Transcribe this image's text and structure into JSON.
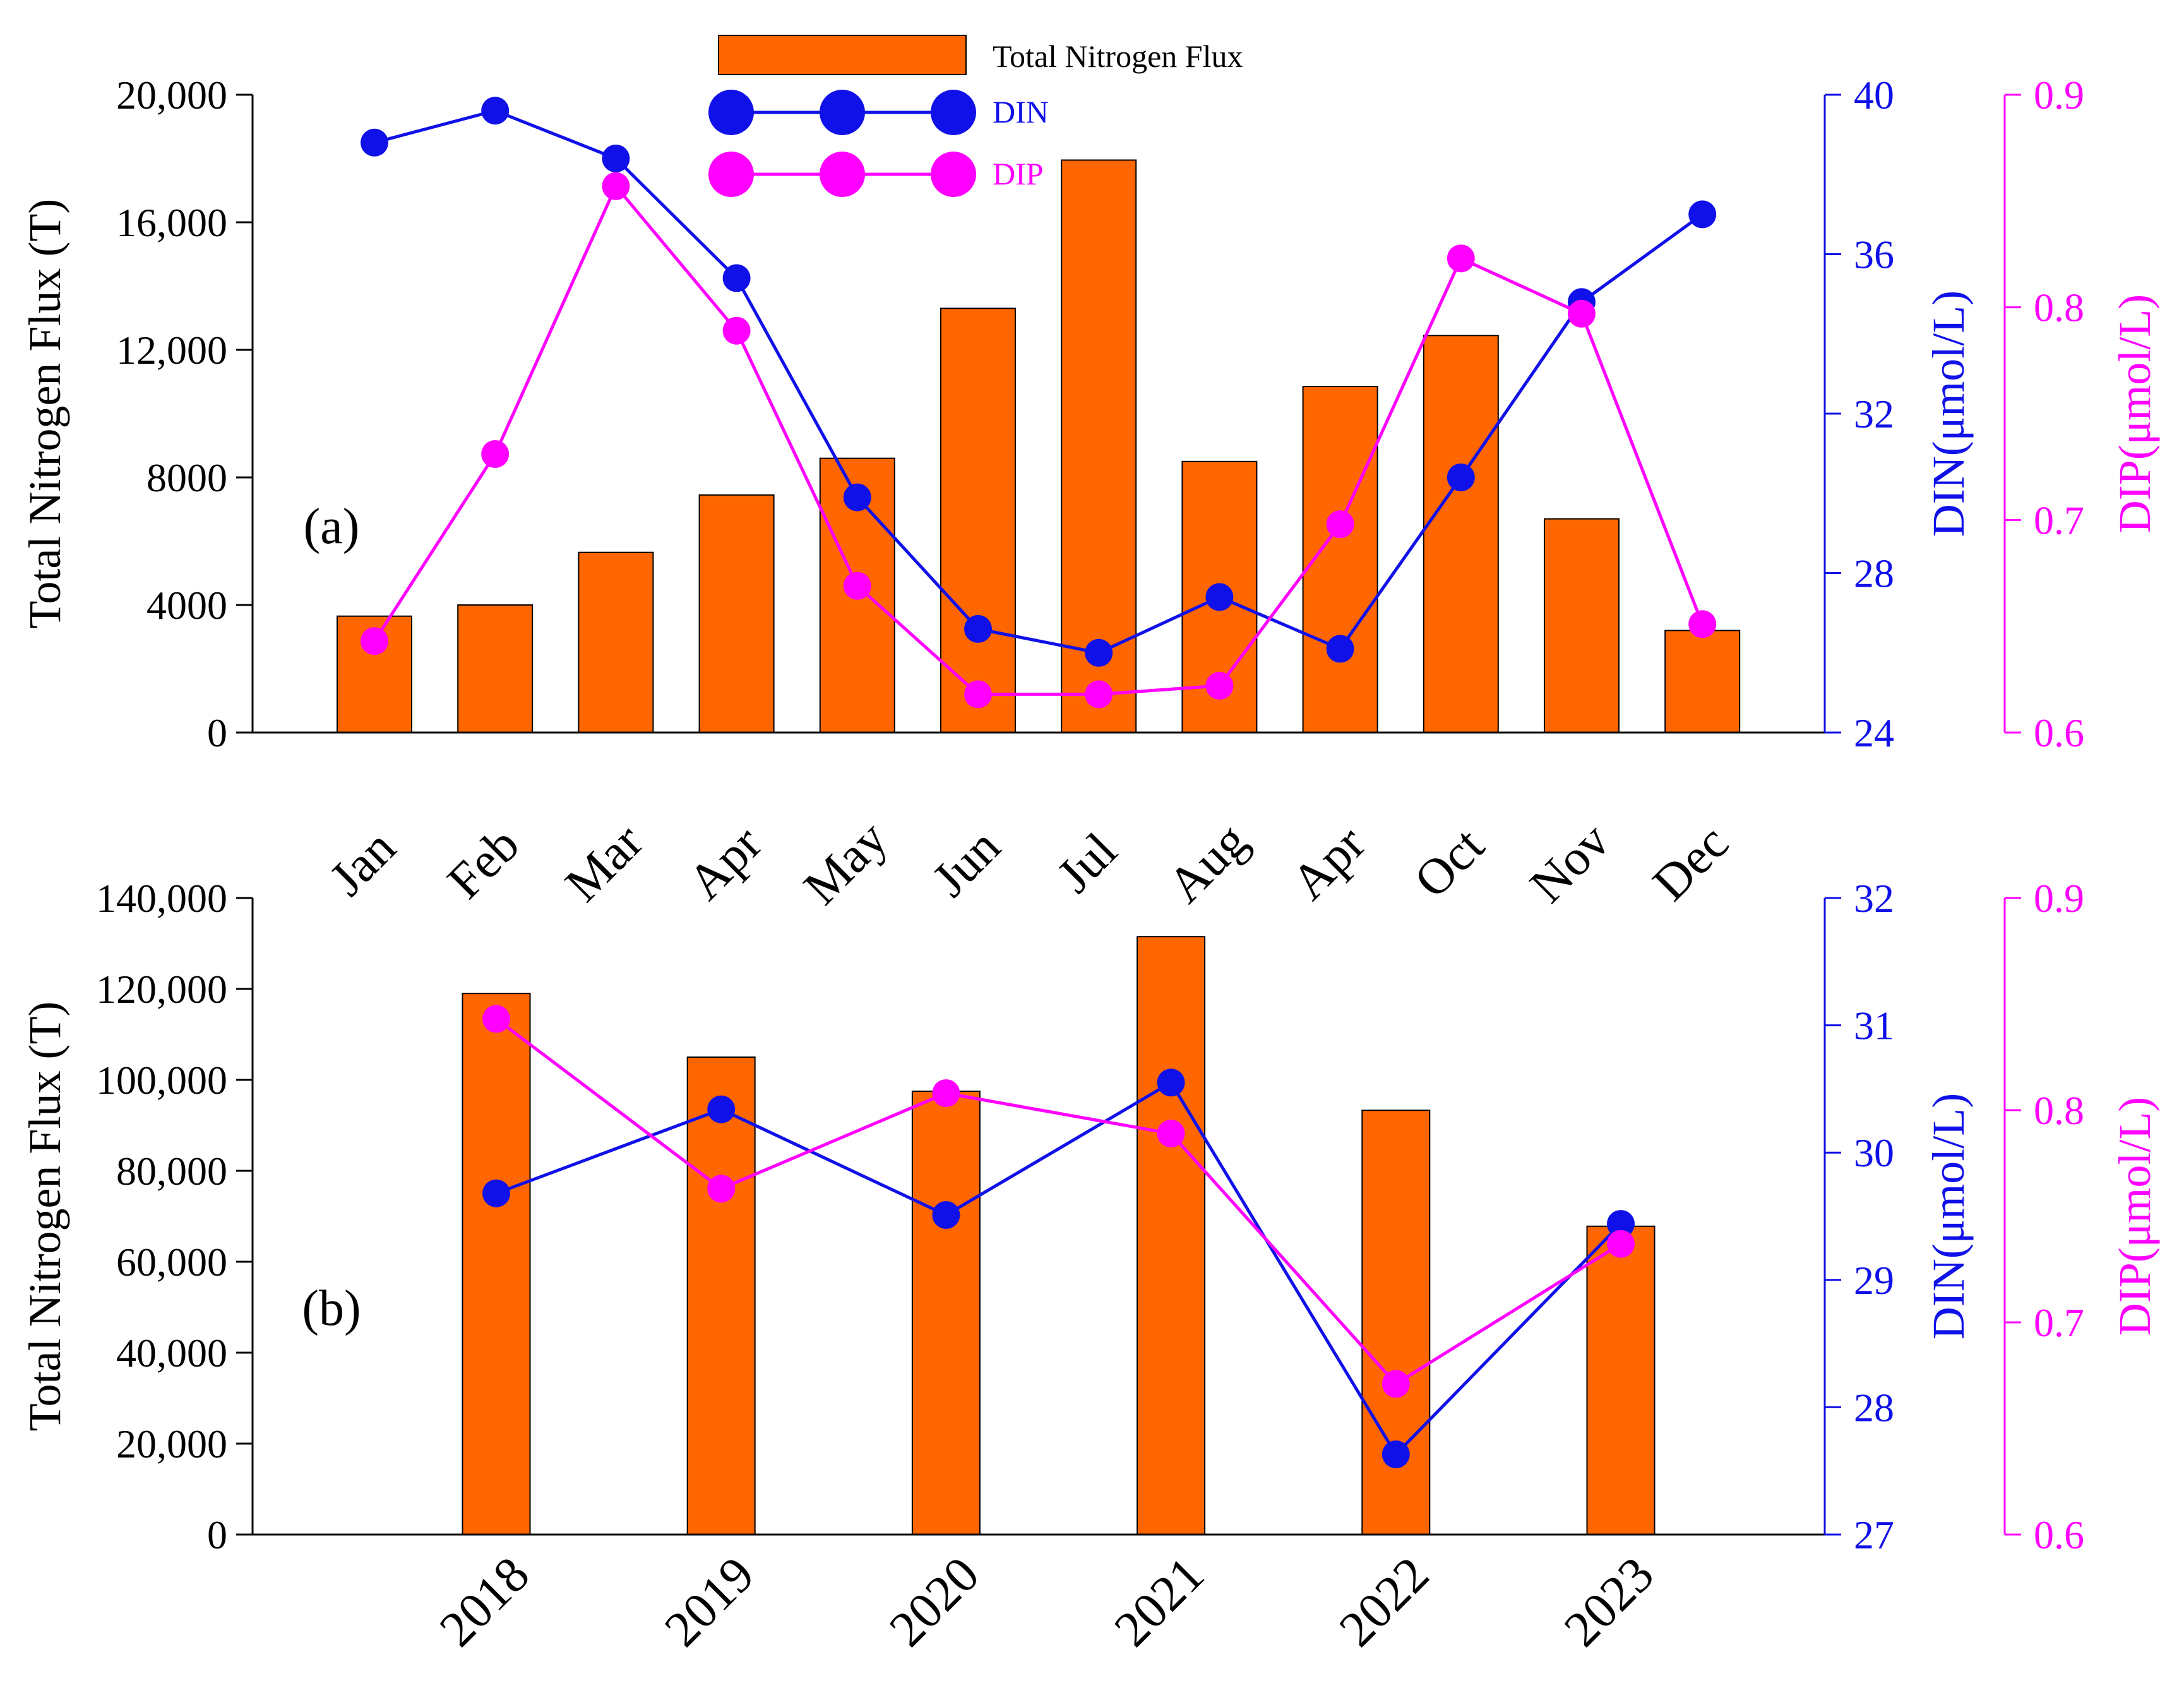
{
  "legend": {
    "bar_label": "Total Nitrogen Flux",
    "din_label": "DIN",
    "dip_label": "DIP"
  },
  "colors": {
    "bar": "#FF6600",
    "din": "#1010E8",
    "dip": "#FF00FF",
    "axis": "#000000"
  },
  "chart_data": [
    {
      "type": "bar",
      "panel_label": "(a)",
      "categories": [
        "Jan",
        "Feb",
        "Mar",
        "Apr",
        "May",
        "Jun",
        "Jul",
        "Aug",
        "Apr",
        "Oct",
        "Nov",
        "Dec"
      ],
      "series": [
        {
          "name": "Total Nitrogen Flux",
          "axis": "left",
          "values": [
            3650,
            4000,
            5650,
            7450,
            8600,
            13300,
            17950,
            8500,
            10850,
            12450,
            6700,
            3200
          ]
        },
        {
          "name": "DIN",
          "axis": "right1",
          "type": "line",
          "values": [
            38.8,
            39.6,
            38.4,
            35.4,
            29.9,
            26.6,
            26.0,
            27.4,
            26.1,
            30.4,
            34.8,
            37.0
          ]
        },
        {
          "name": "DIP",
          "axis": "right2",
          "type": "line",
          "values": [
            0.643,
            0.731,
            0.857,
            0.789,
            0.669,
            0.618,
            0.618,
            0.622,
            0.698,
            0.823,
            0.797,
            0.651
          ]
        }
      ],
      "ylabel": "Total Nitrogen Flux (T)",
      "ylim": [
        0,
        20000
      ],
      "yticks": [
        "0",
        "4000",
        "8000",
        "12,000",
        "16,000",
        "20,000"
      ],
      "y2label": "DIN(μmol/L)",
      "y2lim": [
        24,
        40
      ],
      "y2ticks": [
        "24",
        "28",
        "32",
        "36",
        "40"
      ],
      "y3label": "DIP(μmol/L)",
      "y3lim": [
        0.6,
        0.9
      ],
      "y3ticks": [
        "0.6",
        "0.7",
        "0.8",
        "0.9"
      ]
    },
    {
      "type": "bar",
      "panel_label": "(b)",
      "categories": [
        "2018",
        "2019",
        "2020",
        "2021",
        "2022",
        "2023"
      ],
      "series": [
        {
          "name": "Total Nitrogen Flux",
          "axis": "left",
          "values": [
            119000,
            105000,
            97500,
            131500,
            93300,
            67800
          ]
        },
        {
          "name": "DIN",
          "axis": "right1",
          "type": "line",
          "values": [
            29.68,
            30.34,
            29.51,
            30.55,
            27.63,
            29.44
          ]
        },
        {
          "name": "DIP",
          "axis": "right2",
          "type": "line",
          "values": [
            0.843,
            0.763,
            0.808,
            0.789,
            0.671,
            0.737
          ]
        }
      ],
      "ylabel": "Total Nitrogen Flux (T)",
      "ylim": [
        0,
        140000
      ],
      "yticks": [
        "0",
        "20,000",
        "40,000",
        "60,000",
        "80,000",
        "100,000",
        "120,000",
        "140,000"
      ],
      "y2label": "DIN(μmol/L)",
      "y2lim": [
        27,
        32
      ],
      "y2ticks": [
        "27",
        "28",
        "29",
        "30",
        "31",
        "32"
      ],
      "y3label": "DIP(μmol/L)",
      "y3lim": [
        0.6,
        0.9
      ],
      "y3ticks": [
        "0.6",
        "0.7",
        "0.8",
        "0.9"
      ]
    }
  ]
}
